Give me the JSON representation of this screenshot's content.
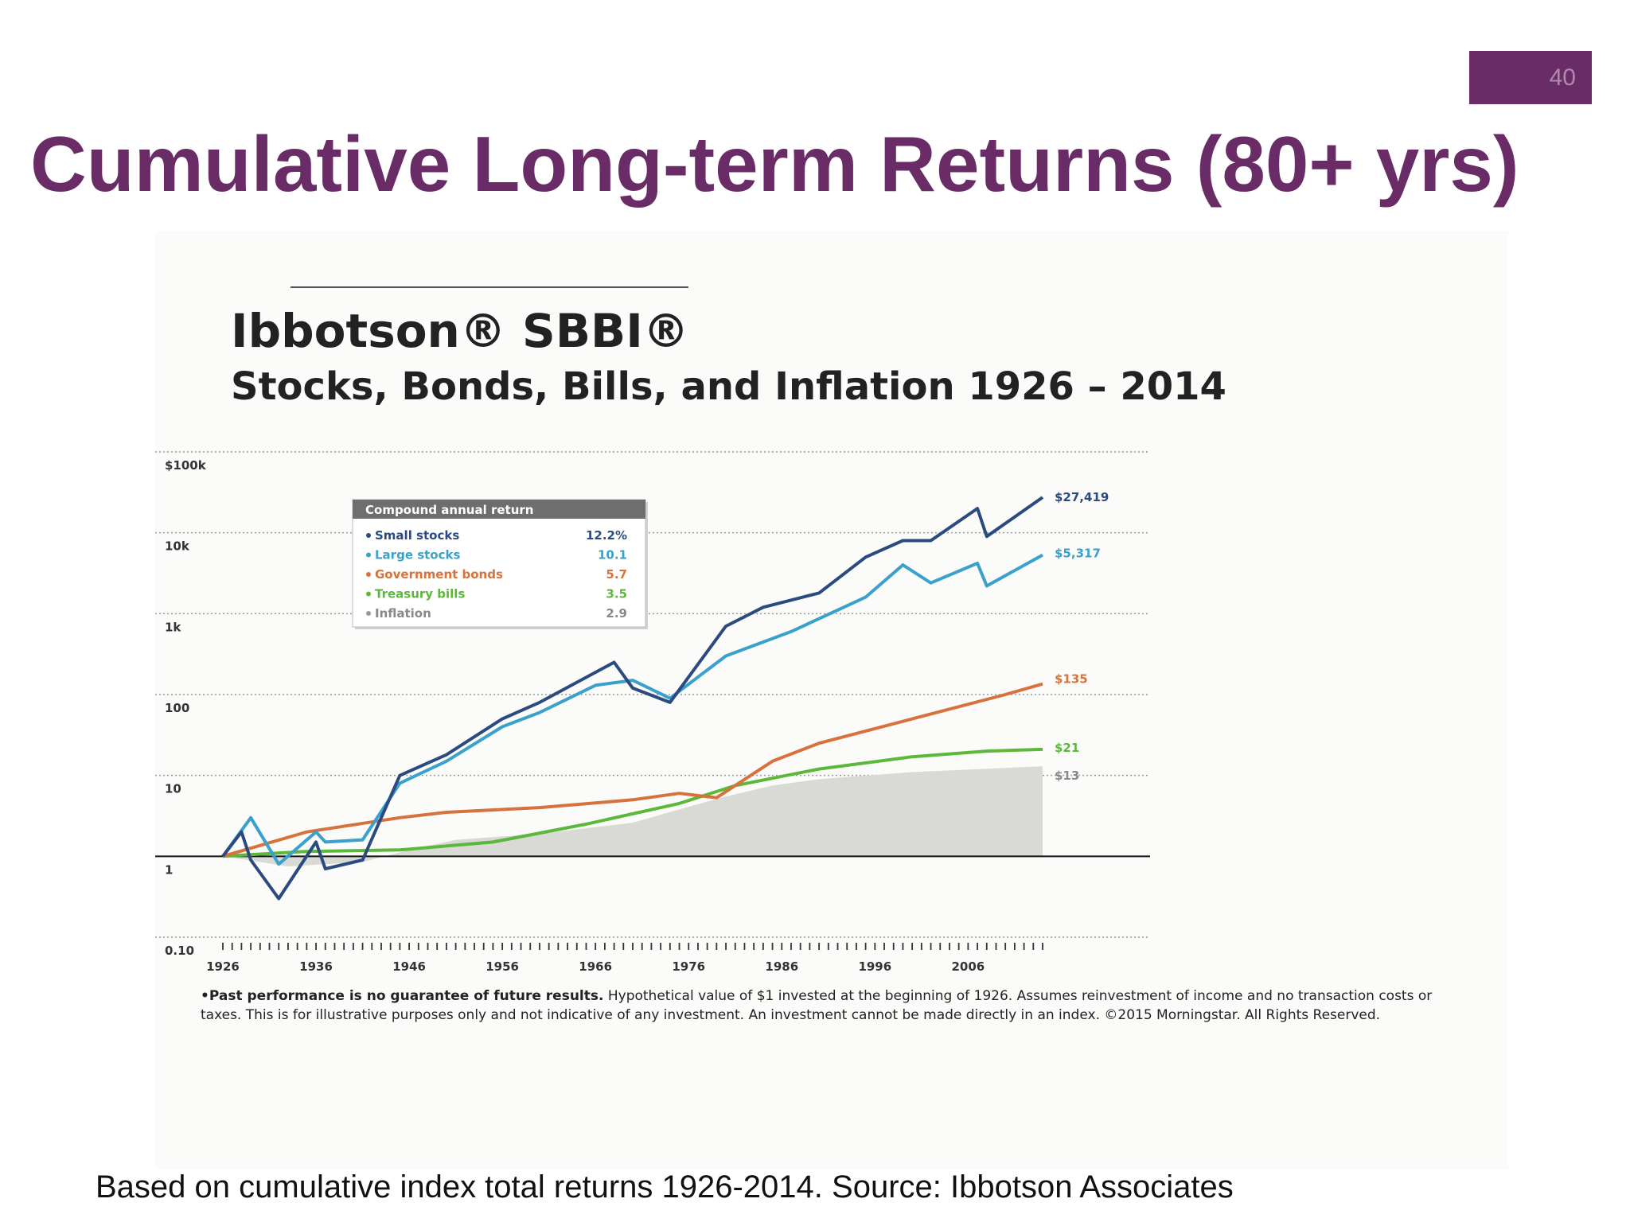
{
  "slide": {
    "number": "40",
    "title": "Cumulative Long-term Returns (80+ yrs)",
    "footnote": "Based on cumulative index total returns 1926-2014.  Source:  Ibbotson Associates"
  },
  "chart_data": {
    "type": "line",
    "title": "Ibbotson® SBBI®",
    "subtitle": "Stocks, Bonds, Bills, and Inflation 1926 – 2014",
    "y_scale": "log",
    "ylim": [
      0.1,
      100000
    ],
    "xlim": [
      1926,
      2014
    ],
    "y_ticks": [
      {
        "value": 100000,
        "label": "$100k"
      },
      {
        "value": 10000,
        "label": "10k"
      },
      {
        "value": 1000,
        "label": "1k"
      },
      {
        "value": 100,
        "label": "100"
      },
      {
        "value": 10,
        "label": "10"
      },
      {
        "value": 1,
        "label": "1"
      },
      {
        "value": 0.1,
        "label": "0.10"
      }
    ],
    "x_tick_labels": [
      "1926",
      "1936",
      "1946",
      "1956",
      "1966",
      "1976",
      "1986",
      "1996",
      "2006"
    ],
    "grid": "dotted horizontal",
    "legend": {
      "position": "top-left",
      "header": "Compound annual return",
      "items": [
        {
          "name": "Small stocks",
          "value": "12.2%",
          "color": "#2b4a7f"
        },
        {
          "name": "Large stocks",
          "value": "10.1",
          "color": "#3aa0cc"
        },
        {
          "name": "Government bonds",
          "value": "5.7",
          "color": "#d8723c"
        },
        {
          "name": "Treasury bills",
          "value": "3.5",
          "color": "#5cb83a"
        },
        {
          "name": "Inflation",
          "value": "2.9",
          "color": "#999999"
        }
      ]
    },
    "series": [
      {
        "name": "Small stocks",
        "color": "#2b4a7f",
        "end_label": "$27,419",
        "x": [
          1926,
          1928,
          1929,
          1932,
          1936,
          1937,
          1941,
          1945,
          1950,
          1956,
          1960,
          1968,
          1970,
          1974,
          1980,
          1984,
          1990,
          1995,
          1999,
          2002,
          2007,
          2008,
          2014
        ],
        "y": [
          1,
          2,
          0.9,
          0.3,
          1.5,
          0.7,
          0.9,
          10,
          18,
          50,
          80,
          250,
          120,
          80,
          700,
          1200,
          1800,
          5000,
          8000,
          8000,
          20000,
          9000,
          27419
        ]
      },
      {
        "name": "Large stocks",
        "color": "#3aa0cc",
        "end_label": "$5,317",
        "x": [
          1926,
          1929,
          1932,
          1936,
          1937,
          1941,
          1945,
          1950,
          1956,
          1960,
          1966,
          1970,
          1974,
          1980,
          1987,
          1995,
          1999,
          2002,
          2007,
          2008,
          2014
        ],
        "y": [
          1,
          3,
          0.8,
          2,
          1.5,
          1.6,
          8,
          15,
          40,
          60,
          130,
          150,
          90,
          300,
          600,
          1600,
          4000,
          2400,
          4200,
          2200,
          5317
        ]
      },
      {
        "name": "Government bonds",
        "color": "#d8723c",
        "end_label": "$135",
        "x": [
          1926,
          1935,
          1945,
          1950,
          1960,
          1970,
          1975,
          1979,
          1985,
          1990,
          2000,
          2010,
          2014
        ],
        "y": [
          1,
          2,
          3,
          3.5,
          4,
          5,
          6,
          5.3,
          15,
          25,
          50,
          100,
          135
        ]
      },
      {
        "name": "Treasury bills",
        "color": "#5cb83a",
        "end_label": "$21",
        "x": [
          1926,
          1935,
          1945,
          1955,
          1965,
          1975,
          1981,
          1990,
          2000,
          2008,
          2014
        ],
        "y": [
          1,
          1.15,
          1.2,
          1.5,
          2.5,
          4.5,
          7.5,
          12,
          17,
          20,
          21
        ]
      },
      {
        "name": "Inflation",
        "color": "#d9d9d6",
        "end_label": "$13",
        "style": "area",
        "x": [
          1926,
          1933,
          1941,
          1946,
          1951,
          1960,
          1970,
          1975,
          1980,
          1985,
          1990,
          2000,
          2014
        ],
        "y": [
          1,
          0.75,
          0.85,
          1.2,
          1.6,
          1.9,
          2.6,
          3.8,
          5.5,
          7.5,
          9,
          11,
          13
        ]
      }
    ],
    "disclaimer_bold": "•Past performance is no guarantee of future results.",
    "disclaimer_text": " Hypothetical value of $1 invested at the beginning of 1926. Assumes reinvestment of income and no transaction costs or taxes. This is for illustrative purposes only and not indicative of any investment. An investment cannot be made directly in an index. ©2015 Morningstar. All Rights Reserved."
  }
}
